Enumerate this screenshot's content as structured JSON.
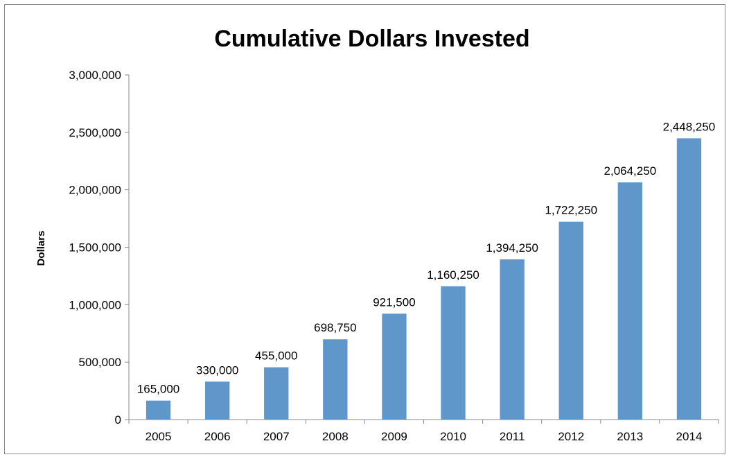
{
  "chart_data": {
    "type": "bar",
    "title": "Cumulative Dollars Invested",
    "xlabel": "",
    "ylabel": "Dollars",
    "categories": [
      "2005",
      "2006",
      "2007",
      "2008",
      "2009",
      "2010",
      "2011",
      "2012",
      "2013",
      "2014"
    ],
    "values": [
      165000,
      330000,
      455000,
      698750,
      921500,
      1160250,
      1394250,
      1722250,
      2064250,
      2448250
    ],
    "data_labels": [
      "165,000",
      "330,000",
      "455,000",
      "698,750",
      "921,500",
      "1,160,250",
      "1,394,250",
      "1,722,250",
      "2,064,250",
      "2,448,250"
    ],
    "ylim": [
      0,
      3000000
    ],
    "yticks": [
      0,
      500000,
      1000000,
      1500000,
      2000000,
      2500000,
      3000000
    ],
    "ytick_labels": [
      "0",
      "500,000",
      "1,000,000",
      "1,500,000",
      "2,000,000",
      "2,500,000",
      "3,000,000"
    ],
    "bar_color": "#5f97cb",
    "grid": false,
    "legend": "none"
  }
}
